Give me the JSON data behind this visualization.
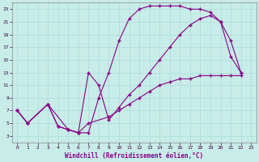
{
  "title": "",
  "xlabel": "Windchill (Refroidissement éolien,°C)",
  "ylabel": "",
  "xlim": [
    -0.5,
    23.5
  ],
  "ylim": [
    2,
    24
  ],
  "xticks": [
    0,
    1,
    2,
    3,
    4,
    5,
    6,
    7,
    8,
    9,
    10,
    11,
    12,
    13,
    14,
    15,
    16,
    17,
    18,
    19,
    20,
    21,
    22,
    23
  ],
  "yticks": [
    3,
    5,
    7,
    9,
    11,
    13,
    15,
    17,
    19,
    21,
    23
  ],
  "bg_color": "#c8ece8",
  "line_color": "#880088",
  "grid_color": "#aadddd",
  "line1_x": [
    0,
    1,
    3,
    4,
    5,
    6,
    7,
    8,
    9,
    10,
    11,
    12,
    13,
    14,
    15,
    16,
    17,
    18,
    19,
    20,
    21,
    22
  ],
  "line1_y": [
    7,
    5,
    8,
    4.5,
    4,
    3.5,
    3.5,
    9,
    13,
    18,
    21.5,
    23,
    23.5,
    23.5,
    23.5,
    23.5,
    23,
    23,
    22.5,
    21,
    18,
    13
  ],
  "line2_x": [
    0,
    1,
    3,
    4,
    5,
    6,
    7,
    8,
    9,
    10,
    11,
    12,
    13,
    14,
    15,
    16,
    17,
    18,
    19,
    20,
    21,
    22
  ],
  "line2_y": [
    7,
    5,
    8,
    4.5,
    4,
    3.5,
    13,
    11,
    5.5,
    7.5,
    9.5,
    11,
    13,
    15,
    17,
    19,
    20.5,
    21.5,
    22,
    21,
    15.5,
    13
  ],
  "line3_x": [
    0,
    1,
    3,
    5,
    6,
    7,
    9,
    10,
    11,
    12,
    13,
    14,
    15,
    16,
    17,
    18,
    19,
    20,
    21,
    22
  ],
  "line3_y": [
    7,
    5,
    8,
    4,
    3.5,
    5,
    6,
    7,
    8,
    9,
    10,
    11,
    11.5,
    12,
    12,
    12.5,
    12.5,
    12.5,
    12.5,
    12.5
  ]
}
